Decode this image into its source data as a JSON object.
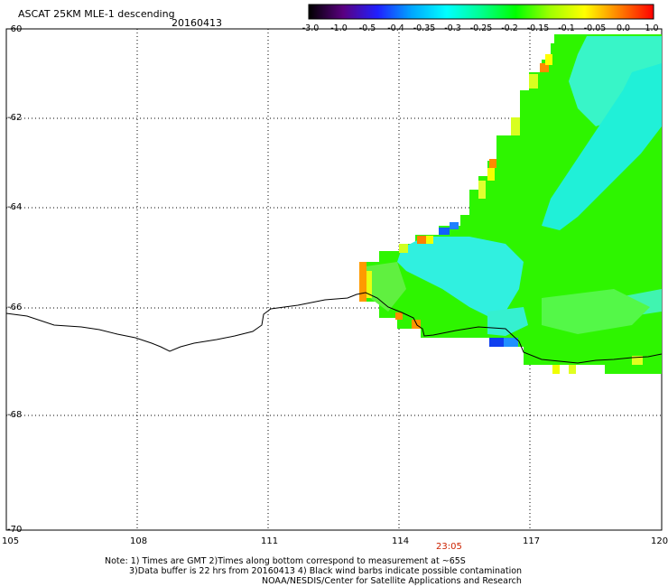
{
  "header": {
    "title": "ASCAT 25KM MLE-1 descending",
    "date": "20160413"
  },
  "colorbar": {
    "labels": [
      "-3.0",
      "-1.0",
      "-0.5",
      "-0.4",
      "-0.35",
      "-0.3",
      "-0.25",
      "-0.2",
      "-0.15",
      "-0.1",
      "-0.05",
      "0.0",
      "1.0"
    ],
    "colors": [
      "#000000",
      "#5a0080",
      "#2020ff",
      "#00a8ff",
      "#00ffff",
      "#00ff90",
      "#00ff00",
      "#a0ff00",
      "#ffff00",
      "#ff8000",
      "#ff0000"
    ]
  },
  "axes": {
    "y_labels": [
      "-60",
      "-62",
      "-64",
      "-66",
      "-68",
      "-70"
    ],
    "x_labels": [
      "105",
      "108",
      "111",
      "114",
      "117",
      "120"
    ]
  },
  "time_label": {
    "text": "23:05",
    "color": "#cc2200"
  },
  "notes": {
    "line1": "Note: 1) Times are GMT 2)Times along bottom correspond to measurement at ~65S",
    "line2": "3)Data buffer is 22 hrs from 20160413 4) Black wind barbs indicate possible contamination",
    "line3": "NOAA/NESDIS/Center for Satellite Applications and Research"
  }
}
